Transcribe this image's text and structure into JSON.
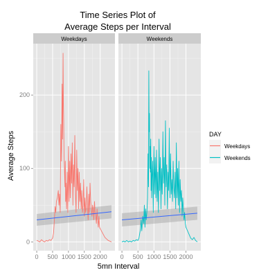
{
  "chart_data": {
    "type": "line",
    "title_lines": [
      "Time Series Plot of",
      "Average Steps per Interval"
    ],
    "xlabel": "5mn Interval",
    "ylabel": "Average Steps",
    "xlim": [
      -110,
      2465
    ],
    "ylim": [
      -12,
      270
    ],
    "x_ticks": [
      0,
      500,
      1000,
      1500,
      2000
    ],
    "x_tick_labels": [
      "0",
      "500",
      "1000",
      "1500",
      "2000"
    ],
    "y_ticks": [
      0,
      100,
      200
    ],
    "y_tick_labels": [
      "0",
      "100",
      "200"
    ],
    "grid": true,
    "legend": {
      "title": "DAY",
      "position": "right",
      "entries": [
        {
          "label": "Weekdays",
          "color": "#F8766D"
        },
        {
          "label": "Weekends",
          "color": "#00BFC4"
        }
      ]
    },
    "smooth_color": "#3366FF",
    "panels": [
      {
        "strip_label": "Weekdays",
        "series_color": "#F8766D",
        "smooth": {
          "x": [
            0,
            2355
          ],
          "y": [
            30,
            41
          ],
          "band_upper": [
            38,
            50
          ],
          "band_lower": [
            22,
            32
          ]
        },
        "x": [
          0,
          50,
          100,
          150,
          200,
          250,
          300,
          350,
          400,
          450,
          500,
          530,
          550,
          580,
          600,
          620,
          650,
          680,
          700,
          720,
          740,
          760,
          780,
          800,
          815,
          830,
          840,
          850,
          860,
          870,
          880,
          890,
          900,
          910,
          920,
          930,
          940,
          960,
          980,
          1000,
          1020,
          1040,
          1060,
          1080,
          1100,
          1120,
          1140,
          1160,
          1180,
          1200,
          1220,
          1240,
          1260,
          1280,
          1300,
          1320,
          1340,
          1360,
          1380,
          1400,
          1420,
          1440,
          1460,
          1480,
          1500,
          1520,
          1540,
          1560,
          1580,
          1600,
          1620,
          1640,
          1660,
          1680,
          1700,
          1720,
          1740,
          1760,
          1780,
          1800,
          1820,
          1840,
          1860,
          1880,
          1900,
          1920,
          1940,
          1960,
          1980,
          2000,
          2050,
          2100,
          2150,
          2200,
          2250,
          2300,
          2355
        ],
        "y": [
          2,
          1,
          0,
          3,
          1,
          0,
          2,
          1,
          3,
          2,
          5,
          12,
          25,
          48,
          40,
          55,
          60,
          70,
          50,
          65,
          40,
          160,
          110,
          215,
          140,
          257,
          190,
          165,
          120,
          105,
          90,
          75,
          110,
          55,
          80,
          60,
          45,
          95,
          40,
          130,
          55,
          110,
          60,
          120,
          80,
          135,
          50,
          105,
          75,
          145,
          65,
          40,
          125,
          70,
          100,
          45,
          95,
          55,
          80,
          45,
          70,
          40,
          50,
          85,
          35,
          60,
          40,
          45,
          75,
          50,
          30,
          65,
          40,
          80,
          55,
          45,
          35,
          50,
          45,
          30,
          55,
          40,
          35,
          25,
          45,
          30,
          20,
          35,
          20,
          18,
          14,
          10,
          6,
          4,
          2,
          1,
          0
        ]
      },
      {
        "strip_label": "Weekends",
        "series_color": "#00BFC4",
        "smooth": {
          "x": [
            0,
            2355
          ],
          "y": [
            30,
            39
          ],
          "band_upper": [
            39,
            48
          ],
          "band_lower": [
            21,
            30
          ]
        },
        "x": [
          0,
          50,
          100,
          150,
          200,
          250,
          300,
          350,
          400,
          450,
          500,
          530,
          550,
          580,
          600,
          620,
          650,
          680,
          700,
          720,
          740,
          760,
          780,
          800,
          815,
          830,
          840,
          850,
          860,
          870,
          880,
          890,
          900,
          910,
          920,
          930,
          940,
          960,
          980,
          1000,
          1020,
          1040,
          1060,
          1080,
          1100,
          1120,
          1140,
          1160,
          1180,
          1200,
          1220,
          1240,
          1260,
          1280,
          1300,
          1320,
          1340,
          1360,
          1380,
          1400,
          1420,
          1440,
          1460,
          1480,
          1500,
          1520,
          1540,
          1560,
          1580,
          1600,
          1620,
          1640,
          1660,
          1680,
          1700,
          1720,
          1740,
          1760,
          1780,
          1800,
          1820,
          1840,
          1860,
          1880,
          1900,
          1920,
          1940,
          1960,
          1980,
          2000,
          2050,
          2100,
          2150,
          2200,
          2250,
          2300,
          2355
        ],
        "y": [
          0,
          1,
          0,
          2,
          0,
          1,
          0,
          2,
          1,
          3,
          2,
          5,
          10,
          18,
          30,
          15,
          35,
          25,
          50,
          20,
          45,
          30,
          40,
          60,
          120,
          75,
          233,
          150,
          175,
          100,
          130,
          95,
          140,
          70,
          115,
          60,
          85,
          110,
          40,
          130,
          65,
          115,
          60,
          125,
          55,
          95,
          40,
          140,
          70,
          115,
          45,
          100,
          65,
          150,
          80,
          115,
          50,
          165,
          75,
          105,
          45,
          95,
          70,
          155,
          60,
          120,
          65,
          85,
          55,
          110,
          75,
          60,
          95,
          45,
          135,
          60,
          100,
          50,
          110,
          40,
          85,
          55,
          70,
          35,
          60,
          45,
          30,
          40,
          25,
          20,
          15,
          10,
          5,
          3,
          6,
          2,
          0
        ]
      }
    ]
  }
}
